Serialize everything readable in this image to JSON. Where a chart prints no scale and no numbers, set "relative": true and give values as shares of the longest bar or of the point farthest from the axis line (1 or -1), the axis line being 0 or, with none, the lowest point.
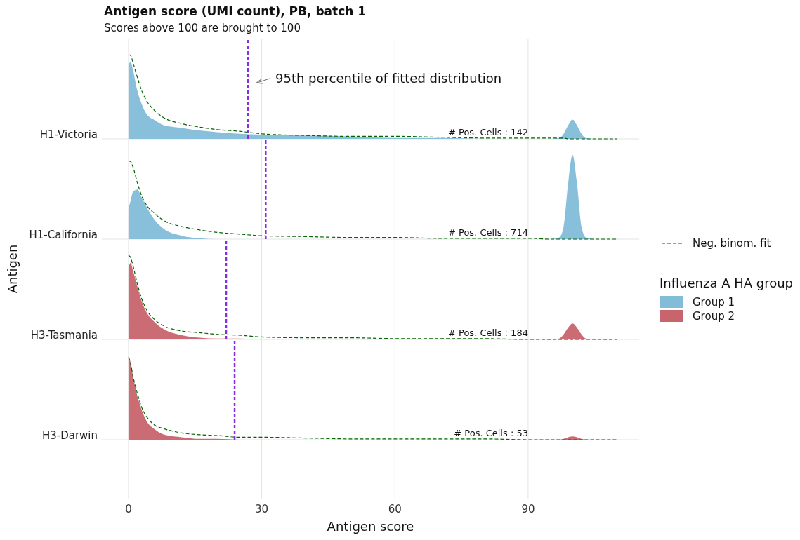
{
  "chart_data": [
    {
      "type": "area",
      "title": "Antigen score (UMI count), PB, batch 1",
      "subtitle": "Scores above 100 are brought to 100",
      "ylabel": "H1-Victoria",
      "relative": true,
      "legend": "right",
      "legend_title": "Influenza A HA group",
      "grid": "x",
      "tick_labels": false,
      "xlim": [
        -6,
        115
      ],
      "xticks": [
        0,
        30,
        60,
        90
      ],
      "annotations": [
        "# Pos. Cells : 142",
        "95th percentile of fitted distribution",
        "Antigen"
      ],
      "ref_lines": [
        {
          "axis": "x",
          "value": 26.9,
          "color": "#8a2be2",
          "line_style": "dashed"
        }
      ],
      "x": [
        0,
        0.5,
        1,
        2,
        3,
        4,
        6,
        8,
        12,
        16,
        20,
        25,
        30,
        40,
        50,
        60,
        70,
        80,
        90,
        95,
        97,
        98,
        99,
        100,
        101,
        102,
        103,
        105,
        110
      ],
      "series": [
        {
          "name": "Group 1",
          "color": "#82bcd9",
          "values": [
            0.89,
            0.91,
            0.82,
            0.57,
            0.41,
            0.3,
            0.22,
            0.16,
            0.13,
            0.1,
            0.08,
            0.06,
            0.05,
            0.04,
            0.03,
            0.01,
            0.01,
            0,
            0,
            0,
            0.01,
            0.06,
            0.16,
            0.23,
            0.16,
            0.06,
            0.01,
            0,
            0
          ]
        },
        {
          "name": "Neg. binom. fit",
          "type": "line",
          "color": "#006400",
          "line_style": "dashed",
          "values": [
            1,
            0.99,
            0.91,
            0.73,
            0.57,
            0.46,
            0.33,
            0.25,
            0.18,
            0.14,
            0.11,
            0.09,
            0.06,
            0.04,
            0.03,
            0.03,
            0.02,
            0.01,
            0.01,
            0.01,
            0.01,
            0.01,
            0,
            0,
            0,
            0,
            0,
            0,
            0
          ]
        }
      ]
    },
    {
      "type": "area",
      "ylabel": "H1-California",
      "relative": true,
      "grid": "x",
      "tick_labels": false,
      "xlim": [
        -6,
        115
      ],
      "xticks": [
        0,
        30,
        60,
        90
      ],
      "annotations": [
        "# Pos. Cells : 714"
      ],
      "ref_lines": [
        {
          "axis": "x",
          "value": 30.9,
          "color": "#8a2be2",
          "line_style": "dashed"
        }
      ],
      "x": [
        0,
        0.5,
        1,
        2,
        3,
        4,
        6,
        8,
        12,
        16,
        20,
        25,
        30,
        40,
        50,
        60,
        70,
        80,
        90,
        95,
        97,
        98,
        99,
        100,
        101,
        102,
        103,
        105,
        110
      ],
      "series": [
        {
          "color": "#82bcd9",
          "values": [
            0.36,
            0.46,
            0.56,
            0.59,
            0.49,
            0.39,
            0.22,
            0.12,
            0.04,
            0.01,
            0,
            0,
            0,
            0,
            0,
            0,
            0,
            0,
            0,
            0,
            0.02,
            0.15,
            0.66,
            1,
            0.66,
            0.15,
            0.02,
            0,
            0
          ]
        },
        {
          "type": "line",
          "color": "#006400",
          "line_style": "dashed",
          "values": [
            0.93,
            0.92,
            0.86,
            0.67,
            0.51,
            0.41,
            0.3,
            0.22,
            0.15,
            0.11,
            0.08,
            0.06,
            0.04,
            0.03,
            0.02,
            0.02,
            0.01,
            0.01,
            0.01,
            0,
            0,
            0,
            0,
            0,
            0,
            0,
            0,
            0,
            0
          ]
        }
      ]
    },
    {
      "type": "area",
      "ylabel": "H3-Tasmania",
      "relative": true,
      "grid": "x",
      "tick_labels": false,
      "xlim": [
        -6,
        115
      ],
      "xticks": [
        0,
        30,
        60,
        90
      ],
      "annotations": [
        "# Pos. Cells : 184"
      ],
      "ref_lines": [
        {
          "axis": "x",
          "value": 22,
          "color": "#8a2be2",
          "line_style": "dashed"
        }
      ],
      "x": [
        0,
        0.5,
        1,
        2,
        3,
        4,
        6,
        8,
        12,
        16,
        20,
        25,
        30,
        40,
        50,
        60,
        70,
        80,
        90,
        95,
        97,
        98,
        99,
        100,
        101,
        102,
        103,
        105,
        110
      ],
      "series": [
        {
          "name": "Group 2",
          "color": "#c8646e",
          "values": [
            0.86,
            0.91,
            0.82,
            0.63,
            0.45,
            0.33,
            0.2,
            0.12,
            0.05,
            0.02,
            0.01,
            0.01,
            0,
            0,
            0,
            0,
            0,
            0,
            0,
            0,
            0.01,
            0.06,
            0.14,
            0.19,
            0.14,
            0.06,
            0.01,
            0,
            0
          ]
        },
        {
          "type": "line",
          "color": "#006400",
          "line_style": "dashed",
          "values": [
            1,
            0.97,
            0.88,
            0.66,
            0.48,
            0.36,
            0.23,
            0.16,
            0.1,
            0.08,
            0.06,
            0.05,
            0.03,
            0.02,
            0.02,
            0.01,
            0.01,
            0.01,
            0,
            0,
            0,
            0,
            0,
            0,
            0,
            0,
            0,
            0,
            0
          ]
        }
      ]
    },
    {
      "type": "area",
      "ylabel": "H3-Darwin",
      "xlabel": "Antigen score",
      "relative": true,
      "grid": "x",
      "tick_labels": "x",
      "xlim": [
        -6,
        115
      ],
      "xticks": [
        0,
        30,
        60,
        90
      ],
      "annotations": [
        "# Pos. Cells : 53"
      ],
      "ref_lines": [
        {
          "axis": "x",
          "value": 23.9,
          "color": "#8a2be2",
          "line_style": "dashed"
        }
      ],
      "x": [
        0,
        0.5,
        1,
        2,
        3,
        4,
        6,
        8,
        12,
        16,
        20,
        25,
        30,
        40,
        50,
        60,
        70,
        80,
        90,
        95,
        97,
        98,
        99,
        100,
        101,
        102,
        103,
        105,
        110
      ],
      "series": [
        {
          "color": "#c8646e",
          "values": [
            1,
            0.91,
            0.76,
            0.52,
            0.35,
            0.23,
            0.12,
            0.06,
            0.03,
            0.01,
            0.01,
            0,
            0,
            0,
            0,
            0,
            0,
            0,
            0,
            0,
            0,
            0.01,
            0.03,
            0.04,
            0.03,
            0.01,
            0,
            0,
            0
          ]
        },
        {
          "type": "line",
          "color": "#006400",
          "line_style": "dashed",
          "values": [
            0.98,
            0.9,
            0.76,
            0.55,
            0.38,
            0.28,
            0.17,
            0.13,
            0.08,
            0.06,
            0.05,
            0.03,
            0.03,
            0.02,
            0.01,
            0.01,
            0.01,
            0.01,
            0,
            0,
            0,
            0,
            0,
            0,
            0,
            0,
            0,
            0,
            0
          ]
        }
      ]
    }
  ]
}
